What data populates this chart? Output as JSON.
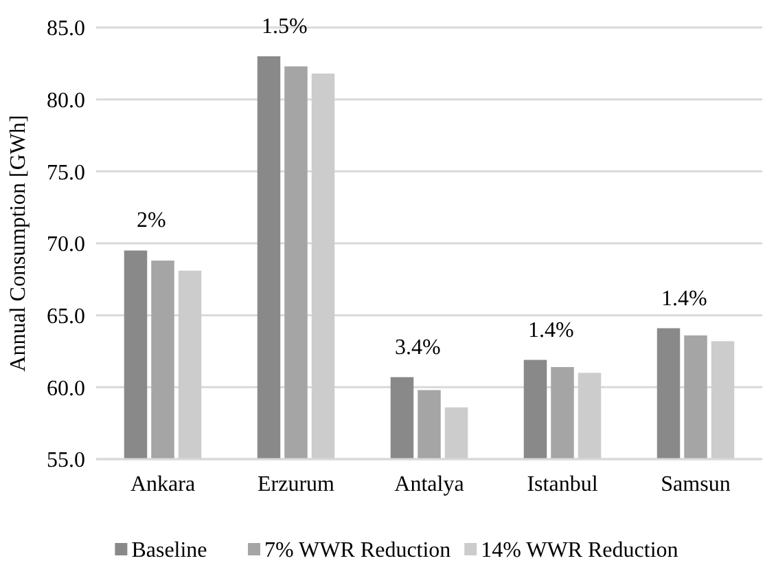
{
  "chart_data": {
    "type": "bar",
    "ylabel": "Annual Consumption [GWh]",
    "categories": [
      "Ankara",
      "Erzurum",
      "Antalya",
      "Istanbul",
      "Samsun"
    ],
    "series": [
      {
        "name": "Baseline",
        "color": "#898989",
        "values": [
          69.5,
          83.0,
          60.7,
          61.9,
          64.1
        ]
      },
      {
        "name": "7% WWR Reduction",
        "color": "#a5a5a5",
        "values": [
          68.8,
          82.3,
          59.8,
          61.4,
          63.6
        ]
      },
      {
        "name": "14% WWR Reduction",
        "color": "#cccccc",
        "values": [
          68.1,
          81.8,
          58.6,
          61.0,
          63.2
        ]
      }
    ],
    "ylim": [
      55,
      85
    ],
    "yticks": [
      {
        "value": 55,
        "label": "55.0"
      },
      {
        "value": 60,
        "label": "60.0"
      },
      {
        "value": 65,
        "label": "65.0"
      },
      {
        "value": 70,
        "label": "70.0"
      },
      {
        "value": 75,
        "label": "75.0"
      },
      {
        "value": 80,
        "label": "80.0"
      },
      {
        "value": 85,
        "label": "85.0"
      }
    ],
    "grid": "y",
    "legend": "bottom",
    "annotations": [
      "2%",
      "1.5%",
      "3.4%",
      "1.4%",
      "1.4%"
    ]
  }
}
